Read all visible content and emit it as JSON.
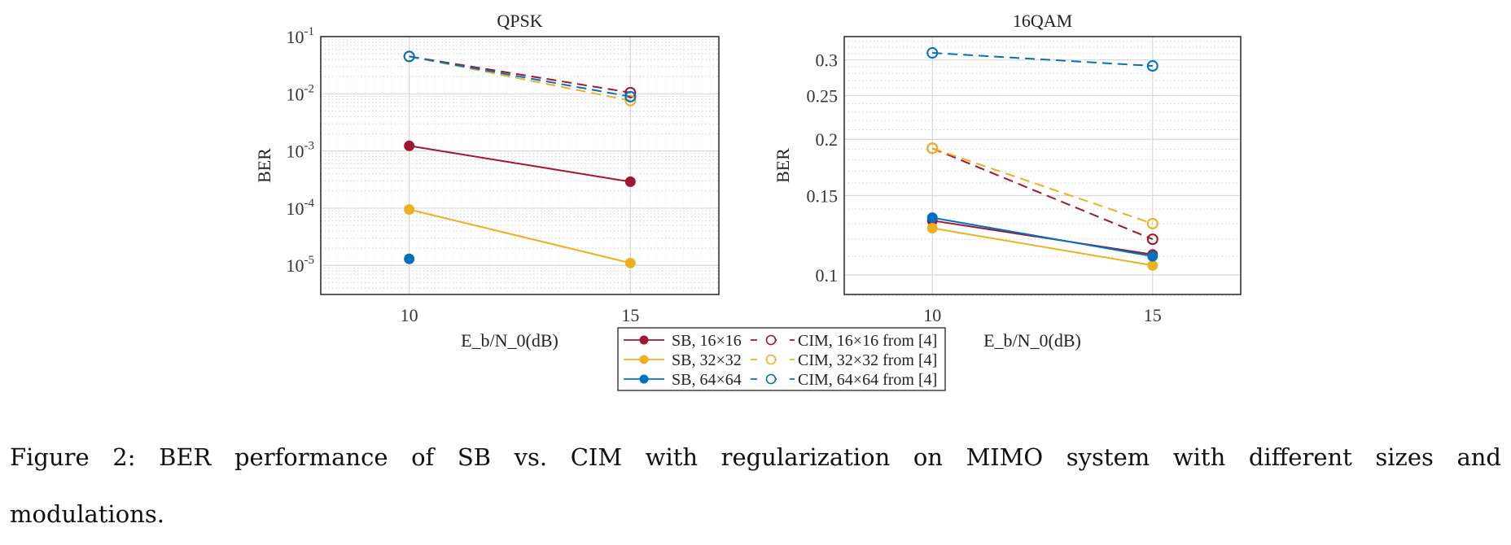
{
  "chart_data": [
    {
      "type": "line",
      "title": "QPSK",
      "xlabel": "E_b/N_0(dB)",
      "ylabel": "BER",
      "yscale": "log",
      "xlim": [
        8,
        17
      ],
      "ylim": [
        3.1e-06,
        0.1
      ],
      "xticks": [
        10,
        15
      ],
      "yticks": [
        0.1,
        0.01,
        0.001,
        0.0001,
        1e-05
      ],
      "ytick_labels": [
        [
          "10",
          "-1"
        ],
        [
          "10",
          "-2"
        ],
        [
          "10",
          "-3"
        ],
        [
          "10",
          "-4"
        ],
        [
          "10",
          "-5"
        ]
      ],
      "grid": true,
      "x": [
        10,
        15
      ],
      "series": [
        {
          "name": "SB, 16×16",
          "color": "#a2142f",
          "style": "solid",
          "marker": "filled",
          "values": [
            0.00123,
            0.00029
          ]
        },
        {
          "name": "SB, 32×32",
          "color": "#edb120",
          "style": "solid",
          "marker": "filled",
          "values": [
            9.5e-05,
            1.1e-05
          ]
        },
        {
          "name": "SB, 64×64",
          "color": "#0072bd",
          "style": "solid",
          "marker": "filled",
          "values": [
            1.3e-05,
            null
          ]
        },
        {
          "name": "CIM, 16×16 from [4]",
          "color": "#a2142f",
          "style": "dashed",
          "marker": "open",
          "values": [
            0.045,
            0.0105
          ]
        },
        {
          "name": "CIM, 32×32 from [4]",
          "color": "#edb120",
          "style": "dashed",
          "marker": "open",
          "values": [
            0.045,
            0.0076
          ]
        },
        {
          "name": "CIM, 64×64 from [4]",
          "color": "#0072bd",
          "style": "dashed",
          "marker": "open",
          "values": [
            0.045,
            0.0089
          ]
        }
      ]
    },
    {
      "type": "line",
      "title": "16QAM",
      "xlabel": "E_b/N_0(dB)",
      "ylabel": "BER",
      "yscale": "log",
      "xlim": [
        8,
        17
      ],
      "ylim": [
        0.0905,
        0.338
      ],
      "xticks": [
        10,
        15
      ],
      "yticks": [
        0.1,
        0.15,
        0.2,
        0.25,
        0.3
      ],
      "ytick_labels": [
        "0.1",
        "0.15",
        "0.2",
        "0.25",
        "0.3"
      ],
      "grid": true,
      "x": [
        10,
        15
      ],
      "series": [
        {
          "name": "SB, 16×16",
          "color": "#a2142f",
          "style": "solid",
          "marker": "filled",
          "values": [
            0.132,
            0.111
          ]
        },
        {
          "name": "SB, 32×32",
          "color": "#edb120",
          "style": "solid",
          "marker": "filled",
          "values": [
            0.127,
            0.105
          ]
        },
        {
          "name": "SB, 64×64",
          "color": "#0072bd",
          "style": "solid",
          "marker": "filled",
          "values": [
            0.134,
            0.11
          ]
        },
        {
          "name": "CIM, 16×16 from [4]",
          "color": "#a2142f",
          "style": "dashed",
          "marker": "open",
          "values": [
            0.191,
            0.12
          ]
        },
        {
          "name": "CIM, 32×32 from [4]",
          "color": "#edb120",
          "style": "dashed",
          "marker": "open",
          "values": [
            0.191,
            0.13
          ]
        },
        {
          "name": "CIM, 64×64 from [4]",
          "color": "#0072bd",
          "style": "dashed",
          "marker": "open",
          "values": [
            0.311,
            0.291
          ]
        }
      ]
    }
  ],
  "legend": {
    "placement": "bottom-center",
    "entries": [
      "SB, 16×16",
      "CIM, 16×16 from [4]",
      "SB, 32×32",
      "CIM, 32×32 from [4]",
      "SB, 64×64",
      "CIM, 64×64 from [4]"
    ]
  },
  "caption": {
    "line1": "Figure 2:  BER performance of SB vs.  CIM with regularization on MIMO system with different sizes and",
    "line2": "modulations."
  }
}
